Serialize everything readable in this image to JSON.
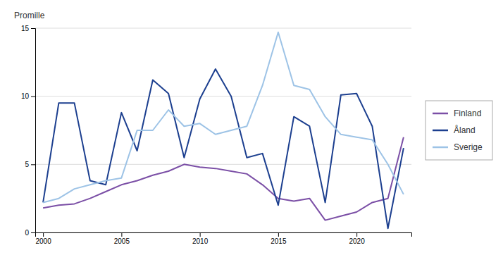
{
  "chart_data": {
    "type": "line",
    "ylabel": "Promille",
    "x": [
      2000,
      2001,
      2002,
      2003,
      2004,
      2005,
      2006,
      2007,
      2008,
      2009,
      2010,
      2011,
      2012,
      2013,
      2014,
      2015,
      2016,
      2017,
      2018,
      2019,
      2020,
      2021,
      2022,
      2023
    ],
    "series": [
      {
        "name": "Finland",
        "color": "#7B4FA6",
        "values": [
          1.8,
          2.0,
          2.1,
          2.5,
          3.0,
          3.5,
          3.8,
          4.2,
          4.5,
          5.0,
          4.8,
          4.7,
          4.5,
          4.3,
          3.5,
          2.5,
          2.3,
          2.5,
          0.9,
          1.2,
          1.5,
          2.2,
          2.5,
          7.0
        ]
      },
      {
        "name": "Åland",
        "color": "#1C3F8F",
        "values": [
          2.2,
          9.5,
          9.5,
          3.8,
          3.5,
          8.8,
          6.0,
          11.2,
          10.2,
          5.5,
          9.8,
          12.0,
          10.0,
          5.5,
          5.8,
          2.0,
          8.5,
          7.8,
          2.2,
          10.1,
          10.2,
          7.8,
          0.3,
          6.2
        ]
      },
      {
        "name": "Sverige",
        "color": "#9DC3E6",
        "values": [
          2.2,
          2.5,
          3.2,
          3.5,
          3.8,
          4.0,
          7.5,
          7.5,
          9.0,
          7.8,
          8.0,
          7.2,
          7.5,
          7.8,
          10.8,
          14.7,
          10.8,
          10.5,
          8.5,
          7.2,
          7.0,
          6.8,
          5.0,
          2.8
        ]
      }
    ],
    "xlim": [
      1999.5,
      2023.5
    ],
    "ylim": [
      0,
      15
    ],
    "xticks": [
      2000,
      2005,
      2010,
      2015,
      2020
    ],
    "yticks": [
      0,
      5,
      10,
      15
    ],
    "grid": true,
    "legend": "right"
  }
}
